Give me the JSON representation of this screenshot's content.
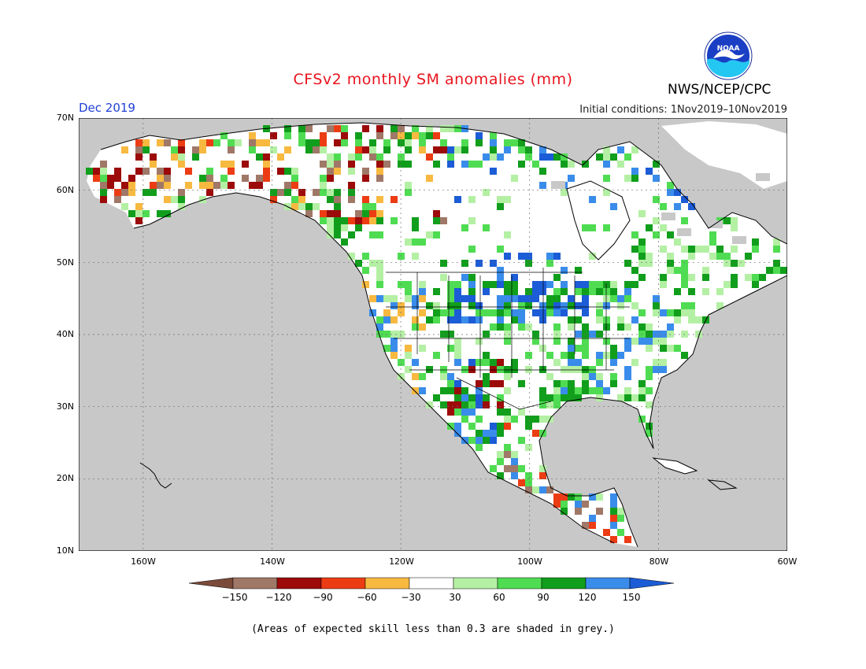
{
  "header": {
    "title": "CFSv2 monthly SM anomalies (mm)",
    "period": "Dec 2019",
    "initial_conditions": "Initial conditions: 1Nov2019–10Nov2019",
    "agency": "NWS/NCEP/CPC",
    "logo_text": "NOAA"
  },
  "axes": {
    "lat_labels": [
      "70N",
      "60N",
      "50N",
      "40N",
      "30N",
      "20N",
      "10N"
    ],
    "lon_labels": [
      "160W",
      "140W",
      "120W",
      "100W",
      "80W",
      "60W"
    ]
  },
  "colorbar": {
    "labels": [
      "−150",
      "−120",
      "−90",
      "−60",
      "−30",
      "30",
      "60",
      "90",
      "120",
      "150"
    ],
    "colors": {
      "lt_-150": "#7a4a3a",
      "-150_-120": "#a07868",
      "-120_-90": "#9c0a0a",
      "-90_-60": "#ec3c14",
      "-60_-30": "#f7b940",
      "-30_30": "#ffffff",
      "30_60": "#b4f0a4",
      "60_90": "#4fdc52",
      "90_120": "#119e1c",
      "120_150": "#3a8cea",
      "gt_150": "#1c5cd6"
    }
  },
  "map_colors": {
    "ocean_grey": "#c8c8c8",
    "land_grey": "#c8c8c8",
    "coast": "#000000",
    "grid": "#6e6e6e"
  },
  "footnote": "(Areas of expected skill less than 0.3 are shaded in grey.)"
}
